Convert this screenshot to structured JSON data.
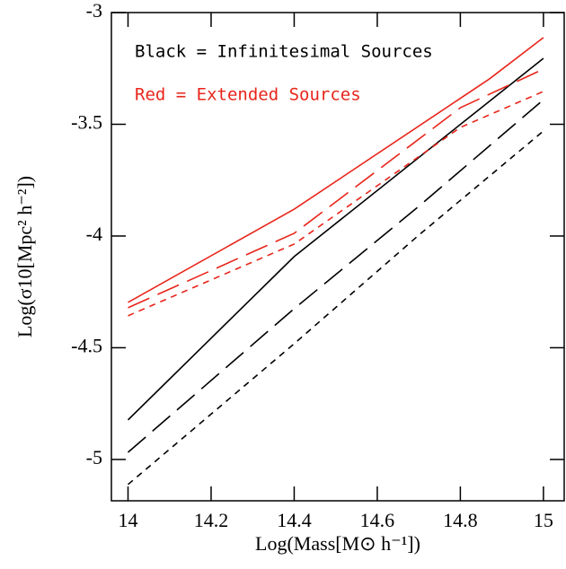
{
  "chart_data": {
    "type": "line",
    "xlabel": "Log(Mass[M⊙ h⁻¹])",
    "ylabel": "Log(σ10[Mpc² h⁻²])",
    "annotations": [
      {
        "text": "Black = Infinitesimal Sources",
        "color": "#000000"
      },
      {
        "text": "Red = Extended Sources",
        "color": "#e8251a"
      }
    ],
    "xlim": [
      13.96,
      15.05
    ],
    "ylim": [
      -5.185,
      -3
    ],
    "xticks": [
      14,
      14.2,
      14.4,
      14.6,
      14.8,
      15
    ],
    "yticks": [
      -5,
      -4.5,
      -4,
      -3.5,
      -3
    ],
    "series": [
      {
        "color": "#000000",
        "dash": "solid",
        "x": [
          14,
          14.4,
          15
        ],
        "values": [
          -4.823,
          -4.092,
          -3.205
        ]
      },
      {
        "color": "#000000",
        "dash": "dashed",
        "x": [
          14,
          14.4,
          14.7,
          15
        ],
        "values": [
          -4.968,
          -4.325,
          -3.867,
          -3.39
        ]
      },
      {
        "color": "#000000",
        "dash": "dotted",
        "x": [
          14,
          14.4,
          14.7,
          15
        ],
        "values": [
          -5.112,
          -4.482,
          -3.996,
          -3.53
        ]
      },
      {
        "color": "#e8251a",
        "dash": "solid",
        "x": [
          14,
          14.4,
          14.87,
          15
        ],
        "values": [
          -4.297,
          -3.88,
          -3.297,
          -3.112
        ]
      },
      {
        "color": "#e8251a",
        "dash": "dashed",
        "x": [
          14,
          14.4,
          14.8,
          15
        ],
        "values": [
          -4.321,
          -3.988,
          -3.426,
          -3.253
        ]
      },
      {
        "color": "#e8251a",
        "dash": "dotted",
        "x": [
          14,
          14.4,
          14.8,
          15
        ],
        "values": [
          -4.357,
          -4.036,
          -3.514,
          -3.353
        ]
      }
    ]
  }
}
